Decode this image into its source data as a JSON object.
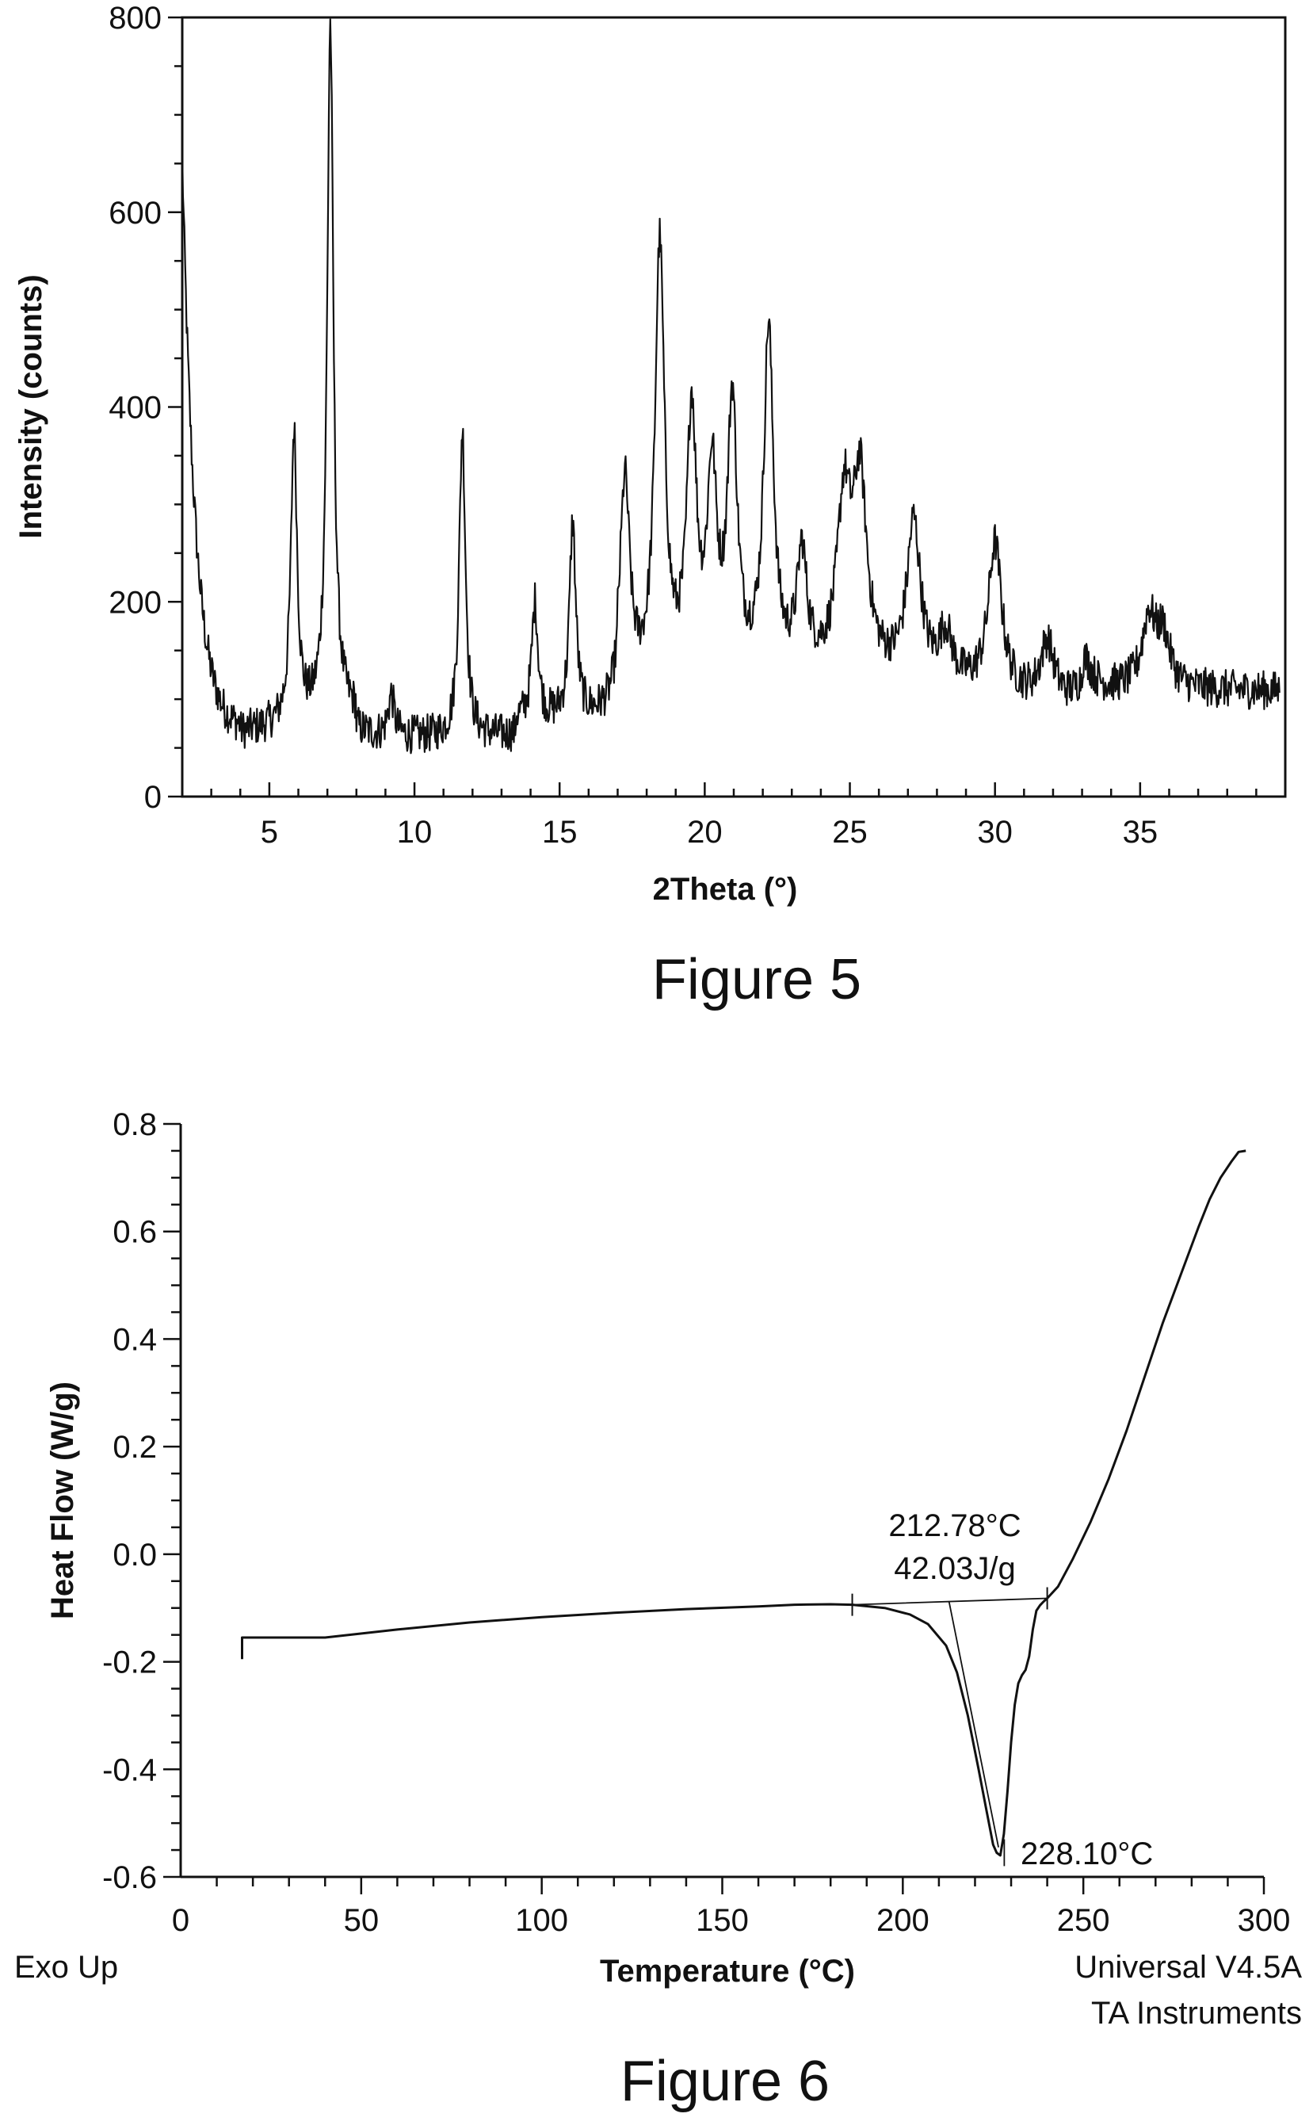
{
  "chart_data": [
    {
      "type": "line",
      "caption": "Figure 5",
      "xlabel": "2Theta (°)",
      "ylabel": "Intensity (counts)",
      "xlim": [
        2,
        40
      ],
      "ylim": [
        0,
        800
      ],
      "xticks": [
        5,
        10,
        15,
        20,
        25,
        30,
        35
      ],
      "yticks": [
        0,
        200,
        400,
        600,
        800
      ],
      "grid": false,
      "peaks": [
        {
          "x": 2.0,
          "y": 640
        },
        {
          "x": 5.85,
          "y": 370
        },
        {
          "x": 7.1,
          "y": 790
        },
        {
          "x": 9.2,
          "y": 100
        },
        {
          "x": 11.65,
          "y": 375
        },
        {
          "x": 14.15,
          "y": 195
        },
        {
          "x": 15.45,
          "y": 275
        },
        {
          "x": 17.25,
          "y": 315
        },
        {
          "x": 18.45,
          "y": 555
        },
        {
          "x": 19.55,
          "y": 380
        },
        {
          "x": 20.25,
          "y": 315
        },
        {
          "x": 20.95,
          "y": 390
        },
        {
          "x": 22.2,
          "y": 470
        },
        {
          "x": 23.35,
          "y": 240
        },
        {
          "x": 24.8,
          "y": 290
        },
        {
          "x": 25.35,
          "y": 310
        },
        {
          "x": 27.2,
          "y": 275
        },
        {
          "x": 28.3,
          "y": 160
        },
        {
          "x": 30.0,
          "y": 255
        },
        {
          "x": 31.8,
          "y": 155
        },
        {
          "x": 33.1,
          "y": 135
        },
        {
          "x": 35.3,
          "y": 180
        },
        {
          "x": 35.8,
          "y": 160
        }
      ]
    },
    {
      "type": "line",
      "caption": "Figure 6",
      "xlabel": "Temperature (°C)",
      "ylabel": "Heat Flow (W/g)",
      "xlim": [
        0,
        300
      ],
      "ylim": [
        -0.6,
        0.8
      ],
      "xticks": [
        0,
        50,
        100,
        150,
        200,
        250,
        300
      ],
      "yticks": [
        -0.6,
        -0.4,
        -0.2,
        0.0,
        0.2,
        0.4,
        0.6,
        0.8
      ],
      "ytick_labels": [
        "-0.6",
        "-0.4",
        "-0.2",
        "0.0",
        "0.2",
        "0.4",
        "0.6",
        "0.8"
      ],
      "grid": false,
      "series": [
        {
          "x": [
            17,
            17,
            30,
            40,
            60,
            80,
            100,
            120,
            140,
            160,
            170,
            180,
            186,
            195,
            202,
            207,
            212,
            215,
            218,
            221,
            223,
            225,
            226,
            227,
            228,
            229,
            230,
            231,
            232,
            233,
            234,
            235,
            236,
            237,
            238,
            239,
            240,
            243,
            247,
            252,
            257,
            262,
            267,
            272,
            277,
            282,
            285,
            288,
            291,
            293,
            295
          ],
          "y": [
            -0.195,
            -0.155,
            -0.155,
            -0.155,
            -0.14,
            -0.127,
            -0.117,
            -0.109,
            -0.102,
            -0.097,
            -0.094,
            -0.093,
            -0.094,
            -0.1,
            -0.112,
            -0.13,
            -0.17,
            -0.22,
            -0.3,
            -0.4,
            -0.47,
            -0.54,
            -0.555,
            -0.56,
            -0.52,
            -0.44,
            -0.35,
            -0.28,
            -0.24,
            -0.225,
            -0.215,
            -0.19,
            -0.14,
            -0.105,
            -0.095,
            -0.088,
            -0.082,
            -0.06,
            -0.01,
            0.06,
            0.14,
            0.23,
            0.33,
            0.43,
            0.52,
            0.61,
            0.66,
            0.7,
            0.73,
            0.748,
            0.75
          ]
        }
      ],
      "annotations": {
        "onset_temp": "212.78°C",
        "enthalpy": "42.03J/g",
        "peak_temp": "228.10°C",
        "exo": "Exo Up",
        "software": "Universal V4.5A",
        "vendor": "TA Instruments"
      }
    }
  ]
}
